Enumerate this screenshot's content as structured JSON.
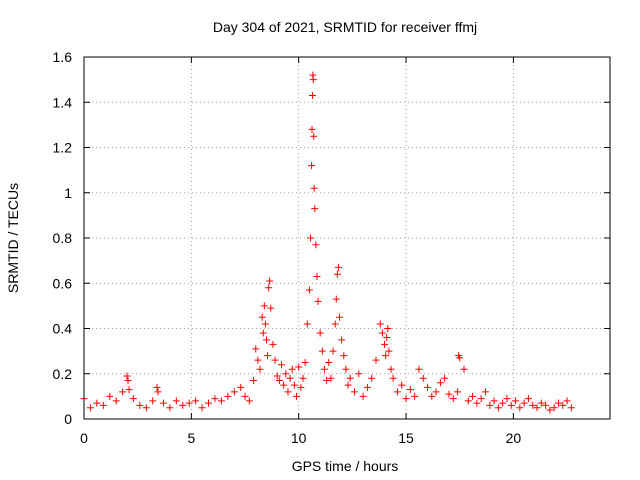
{
  "chart_data": {
    "type": "scatter",
    "title": "Day 304 of 2021, SRMTID for receiver ffmj",
    "xlabel": "GPS time / hours",
    "ylabel": "SRMTID / TECUs",
    "xlim": [
      0,
      24.5
    ],
    "ylim": [
      0,
      1.6
    ],
    "xticks": [
      0,
      5,
      10,
      15,
      20
    ],
    "xtick_labels": [
      "0",
      "5",
      "10",
      "15",
      "20"
    ],
    "yticks": [
      0,
      0.2,
      0.4,
      0.6,
      0.8,
      1.0,
      1.2,
      1.4,
      1.6
    ],
    "ytick_labels": [
      "0",
      "0.2",
      "0.4",
      "0.6",
      "0.8",
      "1",
      "1.2",
      "1.4",
      "1.6"
    ],
    "grid": true,
    "marker": "plus",
    "marker_color": "#ff0000",
    "series": [
      {
        "name": "SRMTID",
        "x": [
          0.0,
          0.3,
          0.6,
          0.9,
          1.2,
          1.5,
          1.8,
          2.0,
          2.05,
          2.1,
          2.3,
          2.6,
          2.9,
          3.2,
          3.4,
          3.45,
          3.7,
          4.0,
          4.3,
          4.6,
          4.9,
          5.2,
          5.5,
          5.8,
          6.1,
          6.4,
          6.7,
          7.0,
          7.3,
          7.5,
          7.7,
          7.9,
          8.0,
          8.1,
          8.2,
          8.3,
          8.35,
          8.4,
          8.45,
          8.5,
          8.55,
          8.6,
          8.65,
          8.7,
          8.8,
          8.9,
          9.0,
          9.1,
          9.2,
          9.3,
          9.4,
          9.5,
          9.6,
          9.7,
          9.8,
          9.9,
          10.0,
          10.1,
          10.2,
          10.3,
          10.4,
          10.5,
          10.55,
          10.6,
          10.62,
          10.64,
          10.66,
          10.68,
          10.7,
          10.72,
          10.75,
          10.8,
          10.85,
          10.9,
          11.0,
          11.1,
          11.2,
          11.3,
          11.4,
          11.5,
          11.6,
          11.7,
          11.75,
          11.8,
          11.85,
          11.9,
          12.0,
          12.1,
          12.2,
          12.3,
          12.4,
          12.6,
          12.8,
          13.0,
          13.2,
          13.4,
          13.6,
          13.8,
          13.9,
          14.0,
          14.05,
          14.1,
          14.15,
          14.2,
          14.3,
          14.4,
          14.6,
          14.8,
          15.0,
          15.2,
          15.4,
          15.6,
          15.8,
          16.0,
          16.2,
          16.4,
          16.6,
          16.8,
          17.0,
          17.2,
          17.4,
          17.45,
          17.5,
          17.7,
          17.9,
          18.1,
          18.3,
          18.5,
          18.7,
          18.9,
          19.1,
          19.3,
          19.5,
          19.7,
          19.9,
          20.1,
          20.3,
          20.5,
          20.7,
          20.9,
          21.1,
          21.3,
          21.5,
          21.7,
          21.9,
          22.1,
          22.3,
          22.5,
          22.7
        ],
        "y": [
          0.09,
          0.05,
          0.07,
          0.06,
          0.1,
          0.08,
          0.12,
          0.19,
          0.17,
          0.13,
          0.09,
          0.06,
          0.05,
          0.08,
          0.14,
          0.12,
          0.07,
          0.05,
          0.08,
          0.06,
          0.07,
          0.08,
          0.05,
          0.07,
          0.09,
          0.08,
          0.1,
          0.12,
          0.14,
          0.1,
          0.08,
          0.17,
          0.31,
          0.26,
          0.22,
          0.45,
          0.38,
          0.5,
          0.42,
          0.35,
          0.28,
          0.58,
          0.61,
          0.49,
          0.33,
          0.26,
          0.19,
          0.17,
          0.24,
          0.15,
          0.2,
          0.12,
          0.18,
          0.22,
          0.15,
          0.1,
          0.23,
          0.14,
          0.18,
          0.25,
          0.42,
          0.57,
          0.8,
          1.12,
          1.28,
          1.43,
          1.52,
          1.5,
          1.25,
          1.02,
          0.93,
          0.77,
          0.63,
          0.52,
          0.38,
          0.3,
          0.22,
          0.17,
          0.25,
          0.18,
          0.3,
          0.42,
          0.53,
          0.64,
          0.67,
          0.45,
          0.35,
          0.28,
          0.22,
          0.15,
          0.18,
          0.12,
          0.2,
          0.1,
          0.14,
          0.18,
          0.26,
          0.42,
          0.38,
          0.33,
          0.28,
          0.36,
          0.4,
          0.3,
          0.22,
          0.18,
          0.12,
          0.15,
          0.09,
          0.13,
          0.1,
          0.22,
          0.18,
          0.14,
          0.1,
          0.12,
          0.16,
          0.18,
          0.11,
          0.09,
          0.12,
          0.28,
          0.27,
          0.22,
          0.08,
          0.1,
          0.07,
          0.09,
          0.12,
          0.06,
          0.08,
          0.05,
          0.07,
          0.09,
          0.06,
          0.08,
          0.05,
          0.07,
          0.09,
          0.06,
          0.05,
          0.07,
          0.06,
          0.04,
          0.05,
          0.07,
          0.06,
          0.08,
          0.05
        ]
      }
    ]
  }
}
